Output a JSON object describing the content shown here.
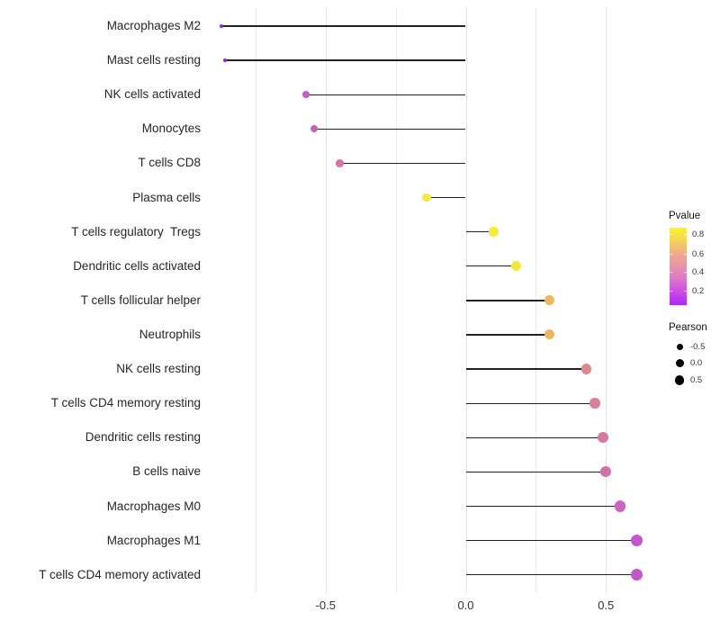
{
  "chart_data": {
    "type": "lollipop",
    "orientation": "horizontal",
    "title": "",
    "xlabel": "",
    "ylabel": "",
    "x_axis": {
      "range": [
        -0.95,
        0.69
      ],
      "tick_labels": [
        "-0.5",
        "0.0",
        "0.5"
      ],
      "tick_values": [
        -0.5,
        0.0,
        0.5
      ],
      "gridlines_major": [
        -0.5,
        0.0,
        0.5
      ],
      "gridlines_minor": [
        -0.75,
        -0.25,
        0.25
      ],
      "grid": "vertical-only"
    },
    "items": [
      {
        "label": "Macrophages M2",
        "pearson": -0.87,
        "color": "#9326DD",
        "diameter": 4
      },
      {
        "label": "Mast cells resting",
        "pearson": -0.86,
        "color": "#9326DD",
        "diameter": 4.2
      },
      {
        "label": "NK cells activated",
        "pearson": -0.57,
        "color": "#C45EC0",
        "diameter": 7.5
      },
      {
        "label": "Monocytes",
        "pearson": -0.54,
        "color": "#C663B7",
        "diameter": 8
      },
      {
        "label": "T cells CD8",
        "pearson": -0.45,
        "color": "#D078A8",
        "diameter": 8.5
      },
      {
        "label": "Plasma cells",
        "pearson": -0.14,
        "color": "#F5E93C",
        "diameter": 9.5
      },
      {
        "label": "T cells regulatory  Tregs",
        "pearson": 0.1,
        "color": "#F6EB38",
        "diameter": 10.5
      },
      {
        "label": "Dendritic cells activated",
        "pearson": 0.18,
        "color": "#F6E73E",
        "diameter": 11
      },
      {
        "label": "T cells follicular helper",
        "pearson": 0.3,
        "color": "#EFB55F",
        "diameter": 11
      },
      {
        "label": "Neutrophils",
        "pearson": 0.3,
        "color": "#EFB55F",
        "diameter": 11
      },
      {
        "label": "NK cells resting",
        "pearson": 0.43,
        "color": "#DB8A91",
        "diameter": 11.5
      },
      {
        "label": "T cells CD4 memory resting",
        "pearson": 0.46,
        "color": "#D98199",
        "diameter": 11.5
      },
      {
        "label": "Dendritic cells resting",
        "pearson": 0.49,
        "color": "#D578A2",
        "diameter": 12
      },
      {
        "label": "B cells naive",
        "pearson": 0.5,
        "color": "#D172AB",
        "diameter": 12
      },
      {
        "label": "Macrophages M0",
        "pearson": 0.55,
        "color": "#CC63C0",
        "diameter": 12.5
      },
      {
        "label": "Macrophages M1",
        "pearson": 0.61,
        "color": "#C456CE",
        "diameter": 13
      },
      {
        "label": "T cells CD4 memory activated",
        "pearson": 0.61,
        "color": "#C456CE",
        "diameter": 13
      }
    ],
    "legends": {
      "pvalue": {
        "title": "Pvalue",
        "tick_labels": [
          "0.8",
          "0.6",
          "0.4",
          "0.2"
        ],
        "gradient_top_to_bottom": [
          "#FCF420",
          "#F5D35B",
          "#EFAB8B",
          "#E894AC",
          "#DD76C9",
          "#C94BE7",
          "#A92BF4"
        ]
      },
      "pearson": {
        "title": "Pearson",
        "entries": [
          {
            "label": "-0.5",
            "diameter": 7
          },
          {
            "label": "0.0",
            "diameter": 9
          },
          {
            "label": "0.5",
            "diameter": 10.5
          }
        ]
      }
    },
    "colors": {
      "stem": "#222222",
      "axis_text": "#333333",
      "label_text": "#262626"
    }
  }
}
